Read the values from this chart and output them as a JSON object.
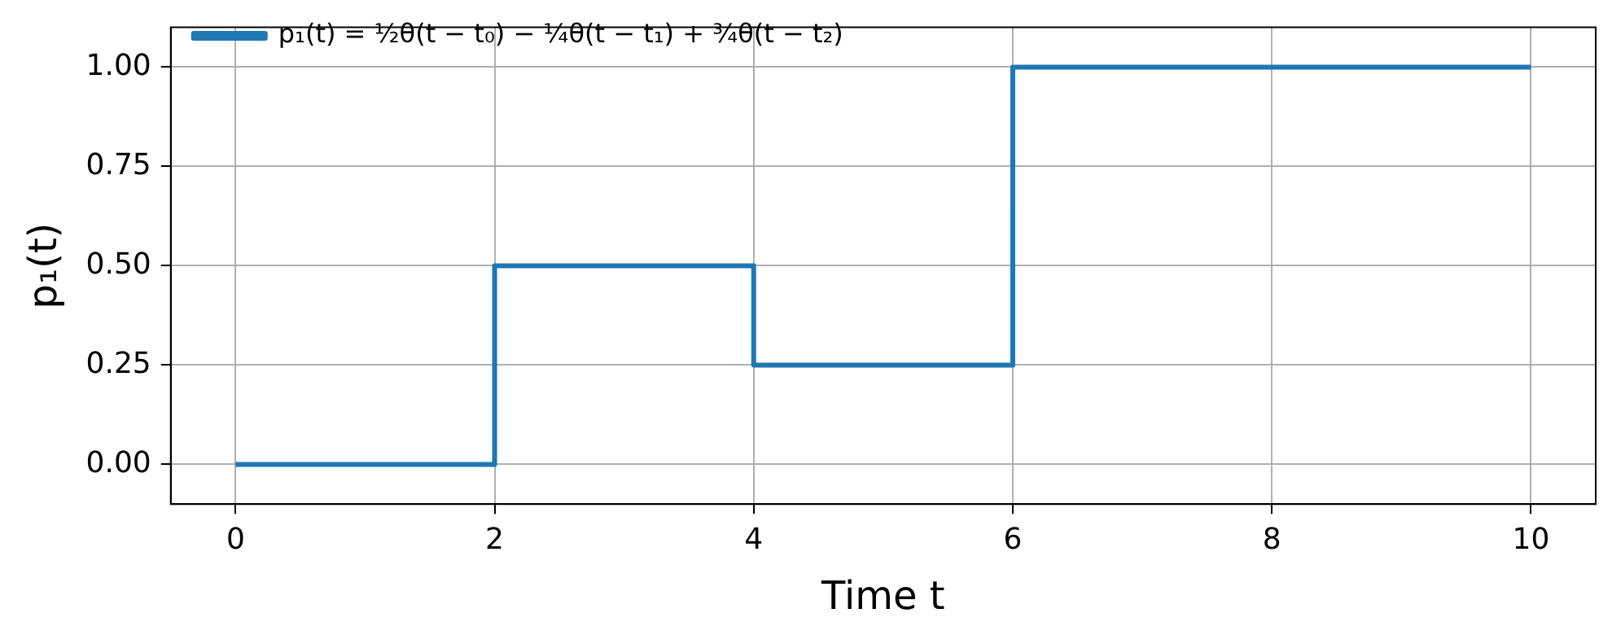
{
  "chart_data": {
    "type": "step",
    "x": [
      0,
      2,
      4,
      6,
      10
    ],
    "series": [
      {
        "name": "p₁(t) = ½θ(t − t₀) − ¼θ(t − t₁) + ¾θ(t − t₂)",
        "color": "#1f77b4",
        "values": [
          0,
          0.5,
          0.25,
          1,
          1
        ]
      }
    ],
    "xlabel": "Time t",
    "ylabel": "p₁(t)",
    "xlim": [
      -0.5,
      10.5
    ],
    "xticks": [
      0,
      2,
      4,
      6,
      8,
      10
    ],
    "ylim": [
      -0.1,
      1.1
    ],
    "yticks": [
      {
        "value": 0,
        "label": "0.00"
      },
      {
        "value": 0.25,
        "label": "0.25"
      },
      {
        "value": 0.5,
        "label": "0.50"
      },
      {
        "value": 0.75,
        "label": "0.75"
      },
      {
        "value": 1,
        "label": "1.00"
      }
    ],
    "grid": true,
    "legend": "top left",
    "marker": "none",
    "line_style": "solid"
  }
}
